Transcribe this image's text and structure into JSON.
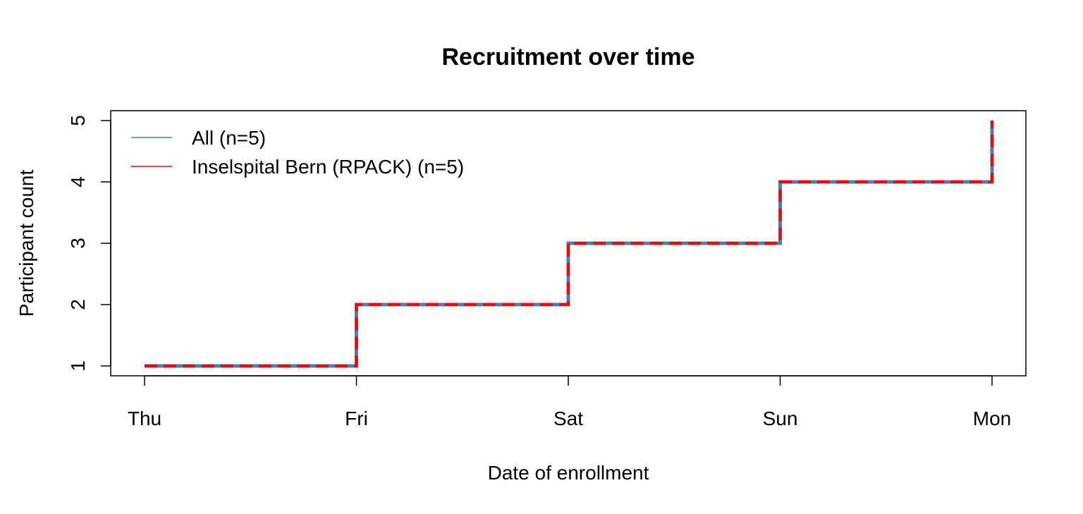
{
  "chart_data": {
    "type": "line",
    "step": true,
    "title": "Recruitment over time",
    "xlabel": "Date of enrollment",
    "ylabel": "Participant count",
    "x_ticks": [
      "Thu",
      "Fri",
      "Sat",
      "Sun",
      "Mon"
    ],
    "y_ticks": [
      "1",
      "2",
      "3",
      "4",
      "5"
    ],
    "ylim": [
      1,
      5
    ],
    "grid": false,
    "legend": {
      "position": "top-left",
      "entries": [
        {
          "label": "All (n=5)",
          "color": "#4682B4",
          "style": "solid"
        },
        {
          "label": "Inselspital Bern (RPACK) (n=5)",
          "color": "#FF0000",
          "style": "dashed"
        }
      ]
    },
    "series": [
      {
        "name": "All (n=5)",
        "color": "#4682B4",
        "style": "solid",
        "x": [
          "Thu",
          "Fri",
          "Sat",
          "Sun",
          "Mon"
        ],
        "y": [
          1,
          2,
          3,
          4,
          5
        ]
      },
      {
        "name": "Inselspital Bern (RPACK) (n=5)",
        "color": "#FF0000",
        "style": "dashed",
        "x": [
          "Thu",
          "Fri",
          "Sat",
          "Sun",
          "Mon"
        ],
        "y": [
          1,
          2,
          3,
          4,
          5
        ]
      }
    ]
  }
}
